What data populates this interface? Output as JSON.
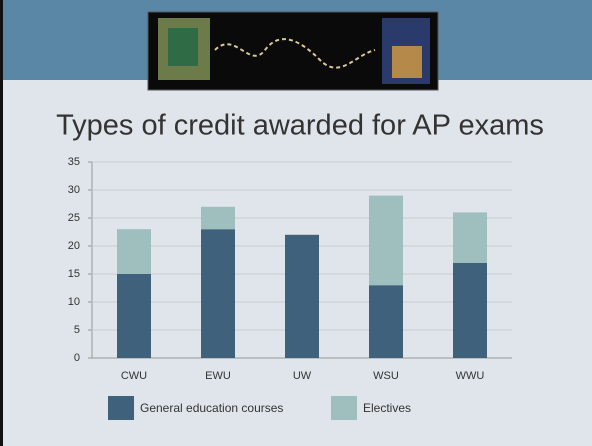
{
  "chart_data": {
    "type": "stacked-bar",
    "title": "Types of credit awarded for AP exams",
    "categories": [
      "CWU",
      "EWU",
      "UW",
      "WSU",
      "WWU"
    ],
    "series": [
      {
        "name": "General education courses",
        "color": "#3f617c",
        "values": [
          15,
          23,
          22,
          13,
          17
        ]
      },
      {
        "name": "Electives",
        "color": "#9fbfbf",
        "values": [
          8,
          4,
          0,
          16,
          9
        ]
      }
    ],
    "ylim": [
      0,
      35
    ],
    "yticks": [
      0,
      5,
      10,
      15,
      20,
      25,
      30,
      35
    ],
    "grid": true,
    "legend": "bottom"
  }
}
